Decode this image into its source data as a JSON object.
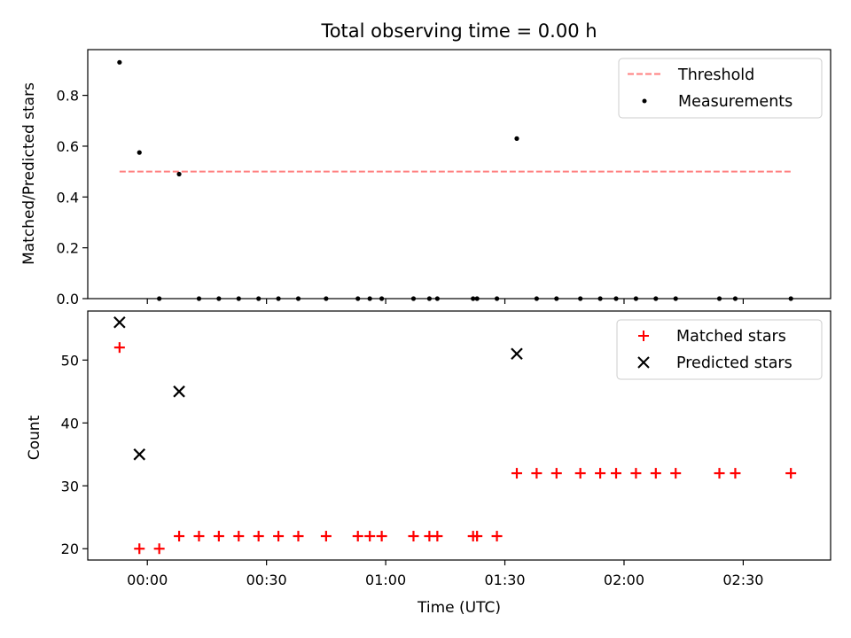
{
  "chart_data": {
    "title": "Total observing time = 0.00 h",
    "x_ticks": [
      "00:00",
      "00:30",
      "01:00",
      "01:30",
      "02:00",
      "02:30"
    ],
    "x_tick_minutes": [
      0,
      30,
      60,
      90,
      120,
      150
    ],
    "xlabel": "Time (UTC)",
    "xlim_minutes": [
      -15,
      172
    ],
    "panels": [
      {
        "type": "scatter",
        "ylabel": "Matched/Predicted stars",
        "ylim": [
          0,
          0.98
        ],
        "yticks": [
          "0.0",
          "0.2",
          "0.4",
          "0.6",
          "0.8"
        ],
        "ytick_values": [
          0.0,
          0.2,
          0.4,
          0.6,
          0.8
        ],
        "legend_position": "top-right",
        "threshold": {
          "name": "Threshold",
          "value": 0.5,
          "x_range_minutes": [
            -7,
            162
          ],
          "color": "#ff7f7f",
          "style": "dashed"
        },
        "series": [
          {
            "name": "Measurements",
            "marker": "dot",
            "color": "#000000",
            "x_minutes": [
              -7,
              -2,
              3,
              8,
              13,
              18,
              23,
              28,
              33,
              38,
              45,
              53,
              56,
              59,
              67,
              71,
              73,
              82,
              83,
              88,
              93,
              98,
              103,
              109,
              114,
              118,
              123,
              128,
              133,
              144,
              148,
              162
            ],
            "y": [
              0.93,
              0.575,
              0.0,
              0.49,
              0.0,
              0.0,
              0.0,
              0.0,
              0.0,
              0.0,
              0.0,
              0.0,
              0.0,
              0.0,
              0.0,
              0.0,
              0.0,
              0.0,
              0.0,
              0.0,
              0.63,
              0.0,
              0.0,
              0.0,
              0.0,
              0.0,
              0.0,
              0.0,
              0.0,
              0.0,
              0.0,
              0.0
            ]
          }
        ]
      },
      {
        "type": "scatter",
        "ylabel": "Count",
        "ylim": [
          18.2,
          57.8
        ],
        "yticks": [
          "20",
          "30",
          "40",
          "50"
        ],
        "ytick_values": [
          20,
          30,
          40,
          50
        ],
        "legend_position": "top-right",
        "series": [
          {
            "name": "Matched stars",
            "marker": "plus",
            "color": "#ff0000",
            "x_minutes": [
              -7,
              -2,
              3,
              8,
              13,
              18,
              23,
              28,
              33,
              38,
              45,
              53,
              56,
              59,
              67,
              71,
              73,
              82,
              83,
              88,
              93,
              98,
              103,
              109,
              114,
              118,
              123,
              128,
              133,
              144,
              148,
              162
            ],
            "y": [
              52,
              20,
              20,
              22,
              22,
              22,
              22,
              22,
              22,
              22,
              22,
              22,
              22,
              22,
              22,
              22,
              22,
              22,
              22,
              22,
              32,
              32,
              32,
              32,
              32,
              32,
              32,
              32,
              32,
              32,
              32,
              32
            ]
          },
          {
            "name": "Predicted stars",
            "marker": "x",
            "color": "#000000",
            "x_minutes": [
              -7,
              -2,
              8,
              93
            ],
            "y": [
              56,
              35,
              45,
              51
            ]
          }
        ]
      }
    ]
  }
}
